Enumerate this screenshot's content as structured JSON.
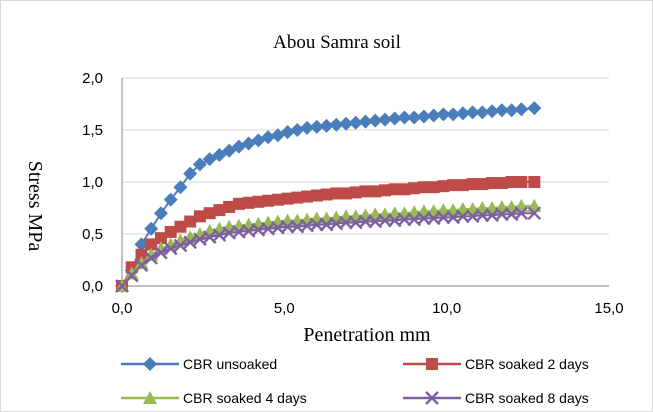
{
  "chart_data": {
    "type": "line",
    "title": "Abou Samra soil",
    "xlabel": "Penetration mm",
    "ylabel": "Stress MPa",
    "xlim": [
      0,
      15
    ],
    "ylim": [
      0,
      2
    ],
    "xticks": [
      0,
      5,
      10,
      15
    ],
    "yticks": [
      0,
      0.5,
      1,
      1.5,
      2
    ],
    "xtick_labels": [
      "0,0",
      "5,0",
      "10,0",
      "15,0"
    ],
    "ytick_labels": [
      "0,0",
      "0,5",
      "1,0",
      "1,5",
      "2,0"
    ],
    "grid": "horizontal",
    "legend_position": "bottom",
    "series": [
      {
        "name": "CBR unsoaked",
        "color": "#4a7ebb",
        "marker": "diamond",
        "points": [
          [
            0,
            0
          ],
          [
            0.3,
            0.15
          ],
          [
            0.6,
            0.4
          ],
          [
            0.9,
            0.55
          ],
          [
            1.2,
            0.7
          ],
          [
            1.5,
            0.83
          ],
          [
            1.8,
            0.95
          ],
          [
            2.1,
            1.08
          ],
          [
            2.4,
            1.17
          ],
          [
            2.7,
            1.22
          ],
          [
            3.0,
            1.26
          ],
          [
            3.3,
            1.3
          ],
          [
            3.6,
            1.34
          ],
          [
            3.9,
            1.37
          ],
          [
            4.2,
            1.4
          ],
          [
            4.5,
            1.43
          ],
          [
            4.8,
            1.45
          ],
          [
            5.1,
            1.48
          ],
          [
            5.4,
            1.5
          ],
          [
            5.7,
            1.52
          ],
          [
            6.0,
            1.53
          ],
          [
            6.3,
            1.54
          ],
          [
            6.6,
            1.55
          ],
          [
            6.9,
            1.56
          ],
          [
            7.2,
            1.57
          ],
          [
            7.5,
            1.58
          ],
          [
            7.8,
            1.59
          ],
          [
            8.1,
            1.6
          ],
          [
            8.4,
            1.61
          ],
          [
            8.7,
            1.62
          ],
          [
            9.0,
            1.62
          ],
          [
            9.3,
            1.63
          ],
          [
            9.6,
            1.64
          ],
          [
            9.9,
            1.65
          ],
          [
            10.2,
            1.65
          ],
          [
            10.5,
            1.66
          ],
          [
            10.8,
            1.67
          ],
          [
            11.1,
            1.67
          ],
          [
            11.4,
            1.68
          ],
          [
            11.7,
            1.69
          ],
          [
            12.0,
            1.69
          ],
          [
            12.3,
            1.7
          ],
          [
            12.7,
            1.71
          ]
        ]
      },
      {
        "name": "CBR soaked 2 days",
        "color": "#be4b48",
        "marker": "square",
        "points": [
          [
            0,
            0
          ],
          [
            0.3,
            0.18
          ],
          [
            0.6,
            0.3
          ],
          [
            0.9,
            0.4
          ],
          [
            1.2,
            0.46
          ],
          [
            1.5,
            0.52
          ],
          [
            1.8,
            0.57
          ],
          [
            2.1,
            0.62
          ],
          [
            2.4,
            0.67
          ],
          [
            2.7,
            0.7
          ],
          [
            3.0,
            0.73
          ],
          [
            3.3,
            0.76
          ],
          [
            3.6,
            0.79
          ],
          [
            3.9,
            0.8
          ],
          [
            4.2,
            0.81
          ],
          [
            4.5,
            0.82
          ],
          [
            4.8,
            0.83
          ],
          [
            5.1,
            0.84
          ],
          [
            5.4,
            0.85
          ],
          [
            5.7,
            0.86
          ],
          [
            6.0,
            0.87
          ],
          [
            6.3,
            0.88
          ],
          [
            6.6,
            0.89
          ],
          [
            6.9,
            0.89
          ],
          [
            7.2,
            0.9
          ],
          [
            7.5,
            0.91
          ],
          [
            7.8,
            0.91
          ],
          [
            8.1,
            0.92
          ],
          [
            8.4,
            0.93
          ],
          [
            8.7,
            0.93
          ],
          [
            9.0,
            0.94
          ],
          [
            9.3,
            0.95
          ],
          [
            9.6,
            0.95
          ],
          [
            9.9,
            0.96
          ],
          [
            10.2,
            0.97
          ],
          [
            10.5,
            0.97
          ],
          [
            10.8,
            0.98
          ],
          [
            11.1,
            0.98
          ],
          [
            11.4,
            0.99
          ],
          [
            11.7,
            0.99
          ],
          [
            12.0,
            1.0
          ],
          [
            12.3,
            1.0
          ],
          [
            12.7,
            1.0
          ]
        ]
      },
      {
        "name": "CBR soaked 4 days",
        "color": "#98b954",
        "marker": "triangle",
        "points": [
          [
            0,
            0
          ],
          [
            0.3,
            0.12
          ],
          [
            0.6,
            0.22
          ],
          [
            0.9,
            0.3
          ],
          [
            1.2,
            0.36
          ],
          [
            1.5,
            0.4
          ],
          [
            1.8,
            0.44
          ],
          [
            2.1,
            0.47
          ],
          [
            2.4,
            0.5
          ],
          [
            2.7,
            0.53
          ],
          [
            3.0,
            0.55
          ],
          [
            3.3,
            0.57
          ],
          [
            3.6,
            0.58
          ],
          [
            3.9,
            0.59
          ],
          [
            4.2,
            0.6
          ],
          [
            4.5,
            0.61
          ],
          [
            4.8,
            0.62
          ],
          [
            5.1,
            0.63
          ],
          [
            5.4,
            0.63
          ],
          [
            5.7,
            0.64
          ],
          [
            6.0,
            0.65
          ],
          [
            6.3,
            0.65
          ],
          [
            6.6,
            0.66
          ],
          [
            6.9,
            0.67
          ],
          [
            7.2,
            0.67
          ],
          [
            7.5,
            0.68
          ],
          [
            7.8,
            0.69
          ],
          [
            8.1,
            0.69
          ],
          [
            8.4,
            0.7
          ],
          [
            8.7,
            0.7
          ],
          [
            9.0,
            0.71
          ],
          [
            9.3,
            0.72
          ],
          [
            9.6,
            0.72
          ],
          [
            9.9,
            0.73
          ],
          [
            10.2,
            0.73
          ],
          [
            10.5,
            0.74
          ],
          [
            10.8,
            0.74
          ],
          [
            11.1,
            0.75
          ],
          [
            11.4,
            0.75
          ],
          [
            11.7,
            0.76
          ],
          [
            12.0,
            0.76
          ],
          [
            12.3,
            0.77
          ],
          [
            12.7,
            0.77
          ]
        ]
      },
      {
        "name": "CBR soaked 8 days",
        "color": "#7d60a0",
        "marker": "x",
        "points": [
          [
            0,
            0
          ],
          [
            0.3,
            0.1
          ],
          [
            0.6,
            0.2
          ],
          [
            0.9,
            0.27
          ],
          [
            1.2,
            0.32
          ],
          [
            1.5,
            0.36
          ],
          [
            1.8,
            0.39
          ],
          [
            2.1,
            0.42
          ],
          [
            2.4,
            0.45
          ],
          [
            2.7,
            0.47
          ],
          [
            3.0,
            0.49
          ],
          [
            3.3,
            0.51
          ],
          [
            3.6,
            0.52
          ],
          [
            3.9,
            0.53
          ],
          [
            4.2,
            0.54
          ],
          [
            4.5,
            0.55
          ],
          [
            4.8,
            0.56
          ],
          [
            5.1,
            0.57
          ],
          [
            5.4,
            0.57
          ],
          [
            5.7,
            0.58
          ],
          [
            6.0,
            0.59
          ],
          [
            6.3,
            0.59
          ],
          [
            6.6,
            0.6
          ],
          [
            6.9,
            0.61
          ],
          [
            7.2,
            0.61
          ],
          [
            7.5,
            0.62
          ],
          [
            7.8,
            0.62
          ],
          [
            8.1,
            0.63
          ],
          [
            8.4,
            0.63
          ],
          [
            8.7,
            0.64
          ],
          [
            9.0,
            0.64
          ],
          [
            9.3,
            0.65
          ],
          [
            9.6,
            0.65
          ],
          [
            9.9,
            0.66
          ],
          [
            10.2,
            0.66
          ],
          [
            10.5,
            0.67
          ],
          [
            10.8,
            0.67
          ],
          [
            11.1,
            0.68
          ],
          [
            11.4,
            0.68
          ],
          [
            11.7,
            0.69
          ],
          [
            12.0,
            0.69
          ],
          [
            12.3,
            0.7
          ],
          [
            12.7,
            0.7
          ]
        ]
      }
    ]
  }
}
